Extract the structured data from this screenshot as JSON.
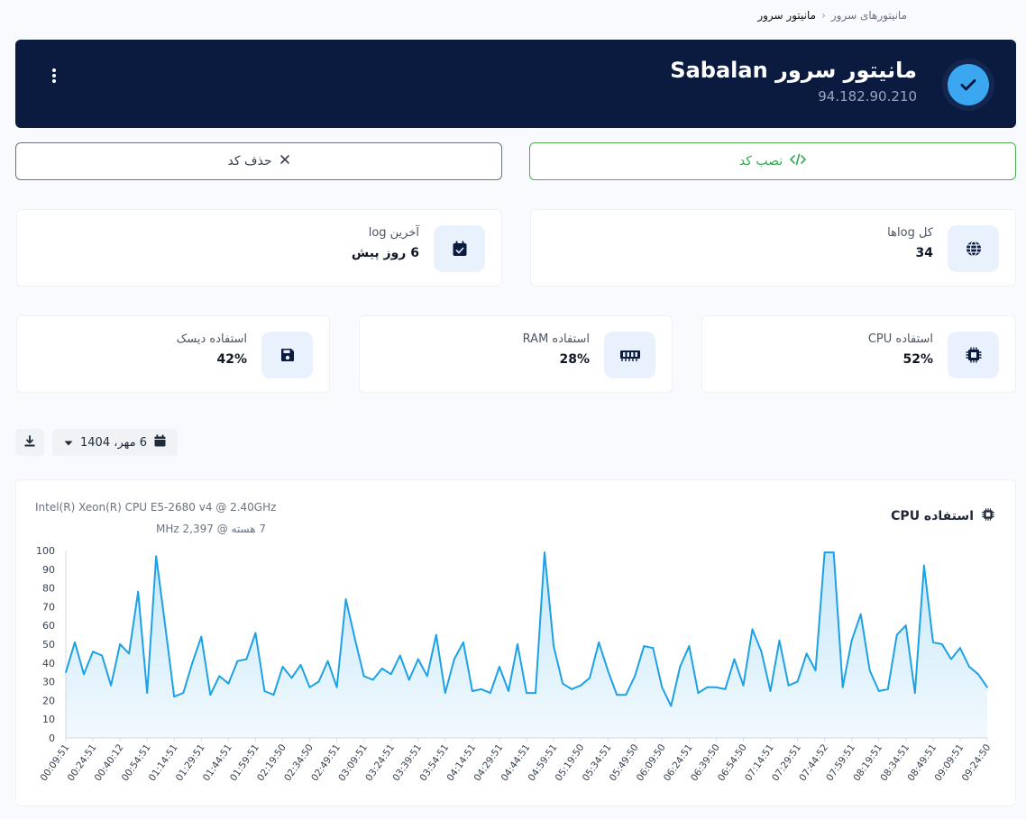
{
  "breadcrumb": {
    "parent": "مانیتورهای سرور",
    "current": "مانیتور سرور"
  },
  "header": {
    "title": "مانیتور سرور Sabalan",
    "ip": "94.182.90.210",
    "status_icon": "check-icon",
    "menu_icon": "kebab-icon"
  },
  "actions": {
    "install_label": "نصب کد",
    "delete_label": "حذف کد"
  },
  "stats": {
    "total_logs": {
      "label": "کل logها",
      "value": "34",
      "icon": "globe-icon"
    },
    "last_log": {
      "label": "آخرین log",
      "value": "6 روز پیش",
      "icon": "calendar-check-icon"
    },
    "cpu": {
      "label": "استفاده CPU",
      "value": "52%",
      "icon": "cpu-icon"
    },
    "ram": {
      "label": "استفاده RAM",
      "value": "28%",
      "icon": "memory-icon"
    },
    "disk": {
      "label": "استفاده دیسک",
      "value": "42%",
      "icon": "floppy-disk-icon"
    }
  },
  "toolbar": {
    "date": "6 مهر، 1404",
    "download_icon": "download-icon",
    "calendar_icon": "calendar-icon",
    "caret_icon": "caret-down-icon"
  },
  "cpu_info": {
    "model": "Intel(R) Xeon(R) CPU E5-2680 v4 @ 2.40GHz",
    "cores": "7 هسته @ 2,397 MHz"
  },
  "colors": {
    "accent": "#1da1e6",
    "header_bg": "#0b1b3f",
    "install": "#34a853"
  },
  "chart_data": {
    "type": "area",
    "title": "استفاده CPU",
    "ylim": [
      0,
      100
    ],
    "yticks": [
      0,
      10,
      20,
      30,
      40,
      50,
      60,
      70,
      80,
      90,
      100
    ],
    "x_tick_labels": [
      "00:09:51",
      "00:24:51",
      "00:40:12",
      "00:54:51",
      "01:14:51",
      "01:29:51",
      "01:44:51",
      "01:59:51",
      "02:19:50",
      "02:34:50",
      "02:49:51",
      "03:09:51",
      "03:24:51",
      "03:39:51",
      "03:54:51",
      "04:14:51",
      "04:29:51",
      "04:44:51",
      "04:59:51",
      "05:19:50",
      "05:34:51",
      "05:49:50",
      "06:09:50",
      "06:24:51",
      "06:39:50",
      "06:54:50",
      "07:14:51",
      "07:29:51",
      "07:44:52",
      "07:59:51",
      "08:19:51",
      "08:34:51",
      "08:49:51",
      "09:09:51",
      "09:24:50"
    ],
    "series": [
      {
        "values": [
          35,
          51,
          34,
          46,
          44,
          28,
          50,
          45,
          78,
          24,
          97,
          60,
          22,
          24,
          40,
          54,
          23,
          33,
          29,
          41,
          42,
          56,
          25,
          23,
          38,
          32,
          39,
          27,
          30,
          41,
          27,
          74,
          53,
          33,
          31,
          37,
          34,
          44,
          31,
          42,
          33,
          55,
          24,
          42,
          51,
          25,
          26,
          24,
          38,
          25,
          50,
          24,
          24,
          99,
          49,
          29,
          26,
          28,
          32,
          51,
          36,
          23,
          23,
          33,
          49,
          48,
          27,
          17,
          38,
          49,
          24,
          27,
          27,
          26,
          42,
          28,
          58,
          46,
          25,
          52,
          28,
          30,
          45,
          36,
          99,
          99,
          27,
          52,
          66,
          36,
          25,
          26,
          55,
          60,
          24,
          92,
          51,
          50,
          42,
          48,
          38,
          34,
          27
        ]
      }
    ]
  }
}
